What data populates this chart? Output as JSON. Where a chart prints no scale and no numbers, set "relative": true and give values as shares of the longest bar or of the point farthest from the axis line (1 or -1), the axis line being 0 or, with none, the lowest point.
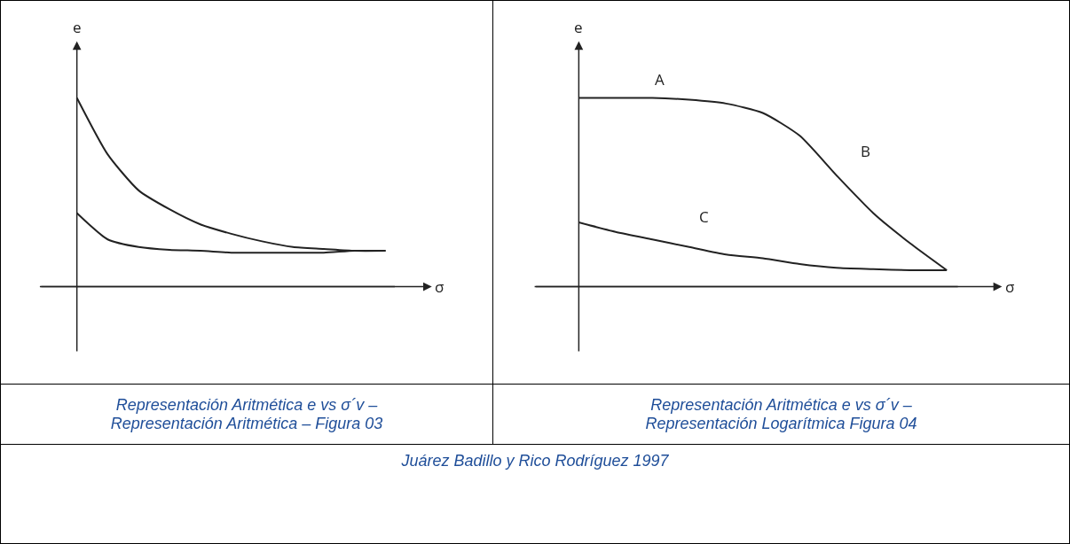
{
  "chart_data": [
    {
      "type": "line",
      "relative": true,
      "title": "Representación Aritmética e vs σ´v – Representación Aritmética – Figura 03",
      "xlabel": "σ",
      "ylabel": "e",
      "categories": [
        null,
        null,
        null,
        null,
        null,
        null,
        null,
        null,
        null,
        null,
        null
      ],
      "series": [
        {
          "color": "#222222",
          "values": [
            1.0,
            0.7,
            0.51,
            0.41,
            0.33,
            0.28,
            0.24,
            0.21,
            0.2,
            0.19,
            0.19
          ]
        },
        {
          "color": "#222222",
          "values": [
            0.39,
            0.25,
            0.21,
            0.195,
            0.19,
            0.18,
            0.18,
            0.18,
            0.18,
            0.19,
            0.19
          ]
        }
      ],
      "annotations": [
        "Juárez Badillo y Rico Rodríguez 1997"
      ]
    },
    {
      "type": "line",
      "relative": true,
      "title": "Representación Aritmética e vs σ´v – Representación Logarítmica Figura 04",
      "xlabel": "σ",
      "ylabel": "e",
      "categories": [
        null,
        null,
        null,
        null,
        null,
        null,
        null,
        null,
        null,
        null,
        null
      ],
      "series": [
        {
          "color": "#222222",
          "values": [
            1.0,
            1.0,
            1.0,
            0.99,
            0.97,
            0.92,
            0.8,
            0.59,
            0.39,
            0.23,
            0.087
          ]
        },
        {
          "color": "#222222",
          "values": [
            0.34,
            0.29,
            0.25,
            0.21,
            0.17,
            0.15,
            0.12,
            0.1,
            0.093,
            0.087,
            0.087
          ]
        }
      ],
      "annotations": [
        "A",
        "B",
        "C"
      ]
    }
  ]
}
